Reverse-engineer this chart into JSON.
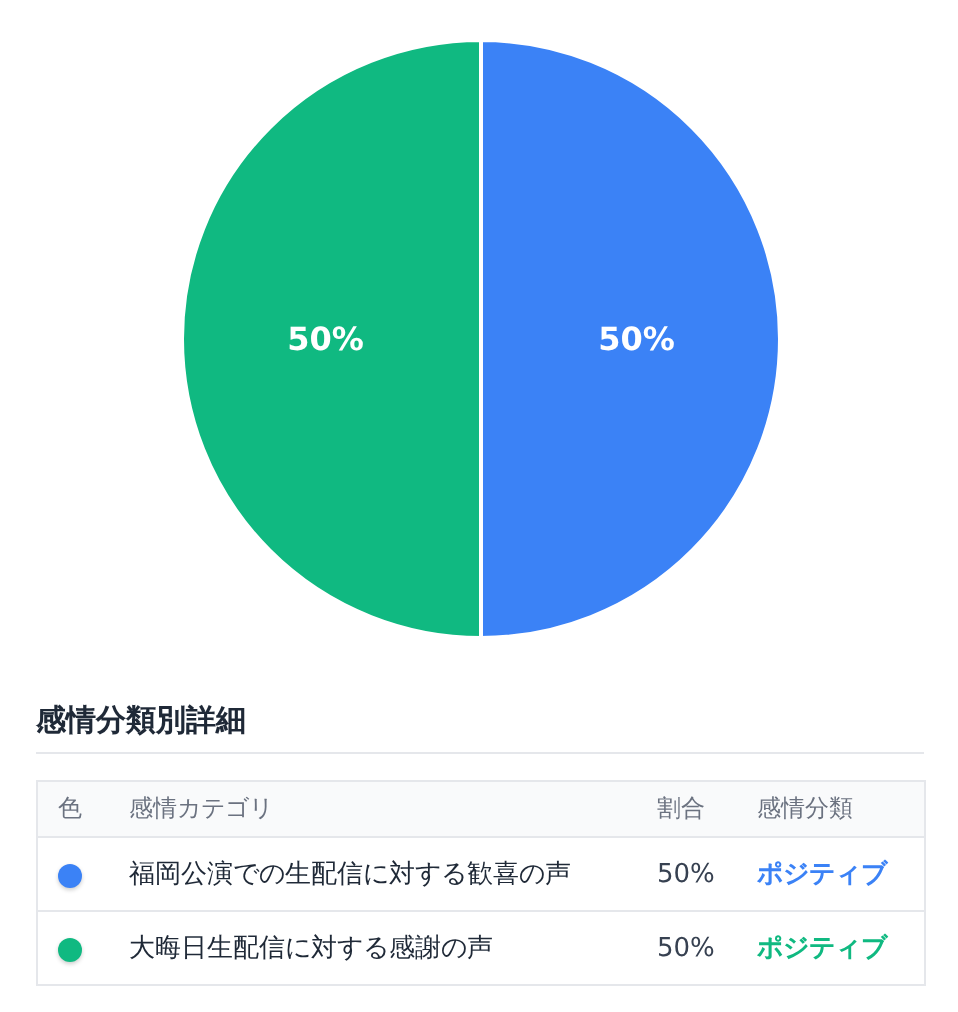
{
  "chart_data": {
    "type": "pie",
    "categories": [
      "福岡公演での生配信に対する歓喜の声",
      "大晦日生配信に対する感謝の声"
    ],
    "values": [
      50,
      50
    ],
    "value_labels": [
      "50%",
      "50%"
    ],
    "colors": [
      "#3b82f6",
      "#10b981"
    ],
    "legend": "bottom",
    "legend_title": "感情分類別詳細",
    "annotations": [
      "色",
      "感情カテゴリ",
      "割合",
      "感情分類",
      "ポジティブ",
      "ポジティブ"
    ]
  }
}
